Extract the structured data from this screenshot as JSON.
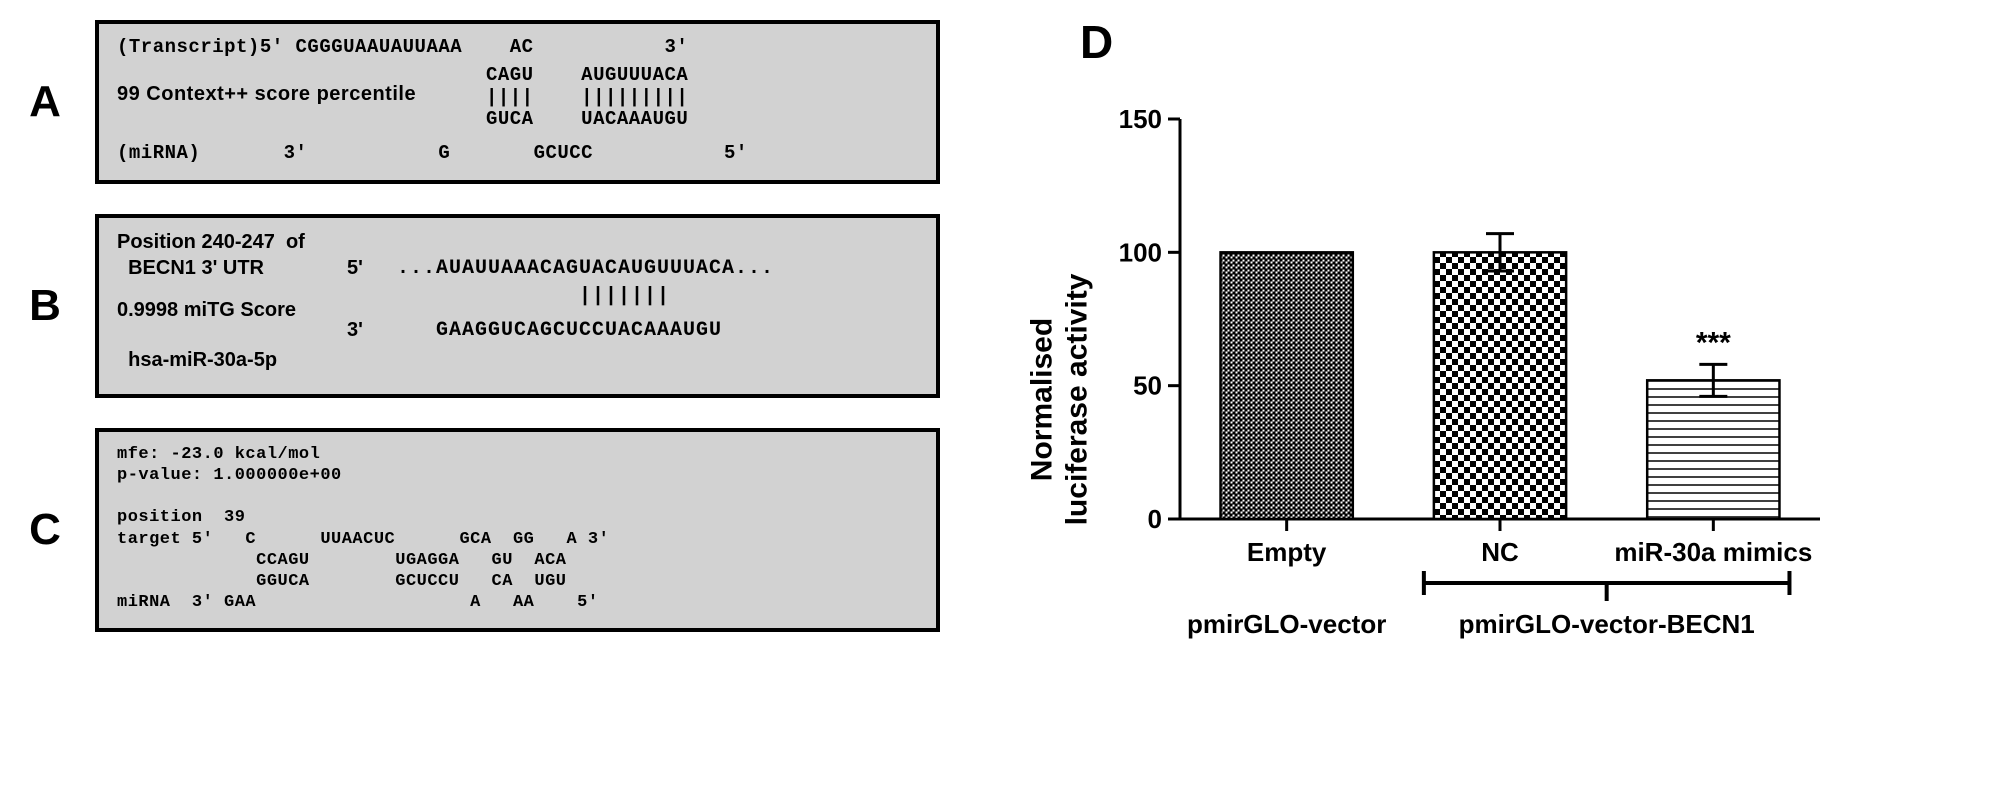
{
  "panel_labels": {
    "A": "A",
    "B": "B",
    "C": "C",
    "D": "D"
  },
  "panelA": {
    "line1": "(Transcript)5' CGGGUAAUAUUAAA    AC           3'",
    "score_label": "99 Context++ score percentile",
    "align_top": "                               CAGU    AUGUUUACA",
    "align_bars": "                               ||||    |||||||||",
    "align_bot": "                               GUCA    UACAAAUGU",
    "line_mirna": "(miRNA)       3'           G       GCUCC           5'"
  },
  "panelB": {
    "pos_label1": "Position 240-247  of",
    "pos_label2": "  BECN1 3' UTR",
    "score_label": "0.9998 miTG Score",
    "hsa": "  hsa-miR-30a-5p",
    "five": "5'",
    "three": "3'",
    "seq_top": "...AUAUUAAACAGUACAUGUUUACA...",
    "bars": "              |||||||",
    "seq_bot": "   GAAGGUCAGCUCCUACAAAUGU"
  },
  "panelC": {
    "l1": "mfe: -23.0 kcal/mol",
    "l2": "p-value: 1.000000e+00",
    "l3": "position  39",
    "l4": "target 5'   C      UUAACUC      GCA  GG   A 3'",
    "l5": "             CCAGU        UGAGGA   GU  ACA",
    "l6": "             GGUCA        GCUCCU   CA  UGU",
    "l7": "miRNA  3' GAA                    A   AA    5'"
  },
  "chart": {
    "type": "bar",
    "ylabel_line1": "Normalised",
    "ylabel_line2": "luciferase activity",
    "ylim": [
      0,
      150
    ],
    "ytick_step": 50,
    "yticks": [
      0,
      50,
      100,
      150
    ],
    "categories": [
      "Empty",
      "NC",
      "miR-30a  mimics"
    ],
    "values": [
      100,
      100,
      52
    ],
    "errors": [
      0,
      7,
      6
    ],
    "significance": [
      "",
      "",
      "***"
    ],
    "bar_width": 0.62,
    "axis_color": "#000000",
    "axis_width": 3,
    "background": "#ffffff",
    "tick_font_size": 26,
    "tick_font_weight": "bold",
    "bottom_groups": {
      "left_label": "pmirGLO-vector",
      "right_label": "pmirGLO-vector-BECN1"
    },
    "patterns": {
      "empty": {
        "type": "fine-check",
        "cell": 5,
        "stroke": "#000000"
      },
      "nc": {
        "type": "coarse-check",
        "cell": 12,
        "stroke": "#000000"
      },
      "mir30a": {
        "type": "horiz-lines",
        "gap": 8,
        "stroke": "#000000"
      }
    }
  }
}
